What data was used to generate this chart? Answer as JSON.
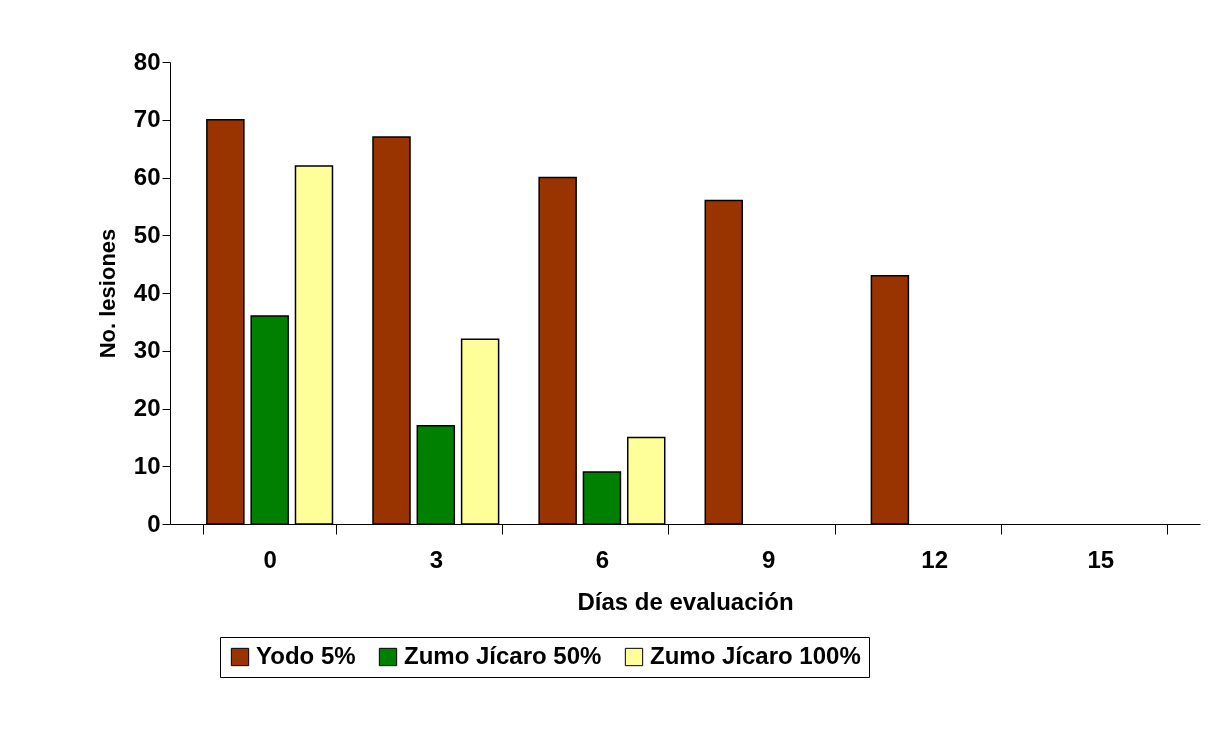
{
  "chart_data": {
    "type": "bar",
    "xlabel": "Días de evaluación",
    "ylabel": "No. lesiones",
    "categories": [
      "0",
      "3",
      "6",
      "9",
      "12",
      "15"
    ],
    "series": [
      {
        "name": "Yodo 5%",
        "color": "#993300",
        "values": [
          70,
          67,
          60,
          56,
          43,
          null
        ]
      },
      {
        "name": "Zumo Jícaro 50%",
        "color": "#008000",
        "values": [
          36,
          17,
          9,
          null,
          null,
          null
        ]
      },
      {
        "name": "Zumo Jícaro 100%",
        "color": "#ffff99",
        "values": [
          62,
          32,
          15,
          null,
          null,
          null
        ]
      }
    ],
    "ylim": [
      0,
      80
    ],
    "yticks": [
      0,
      10,
      20,
      30,
      40,
      50,
      60,
      70,
      80
    ],
    "grid": false,
    "legend": "bottom"
  }
}
